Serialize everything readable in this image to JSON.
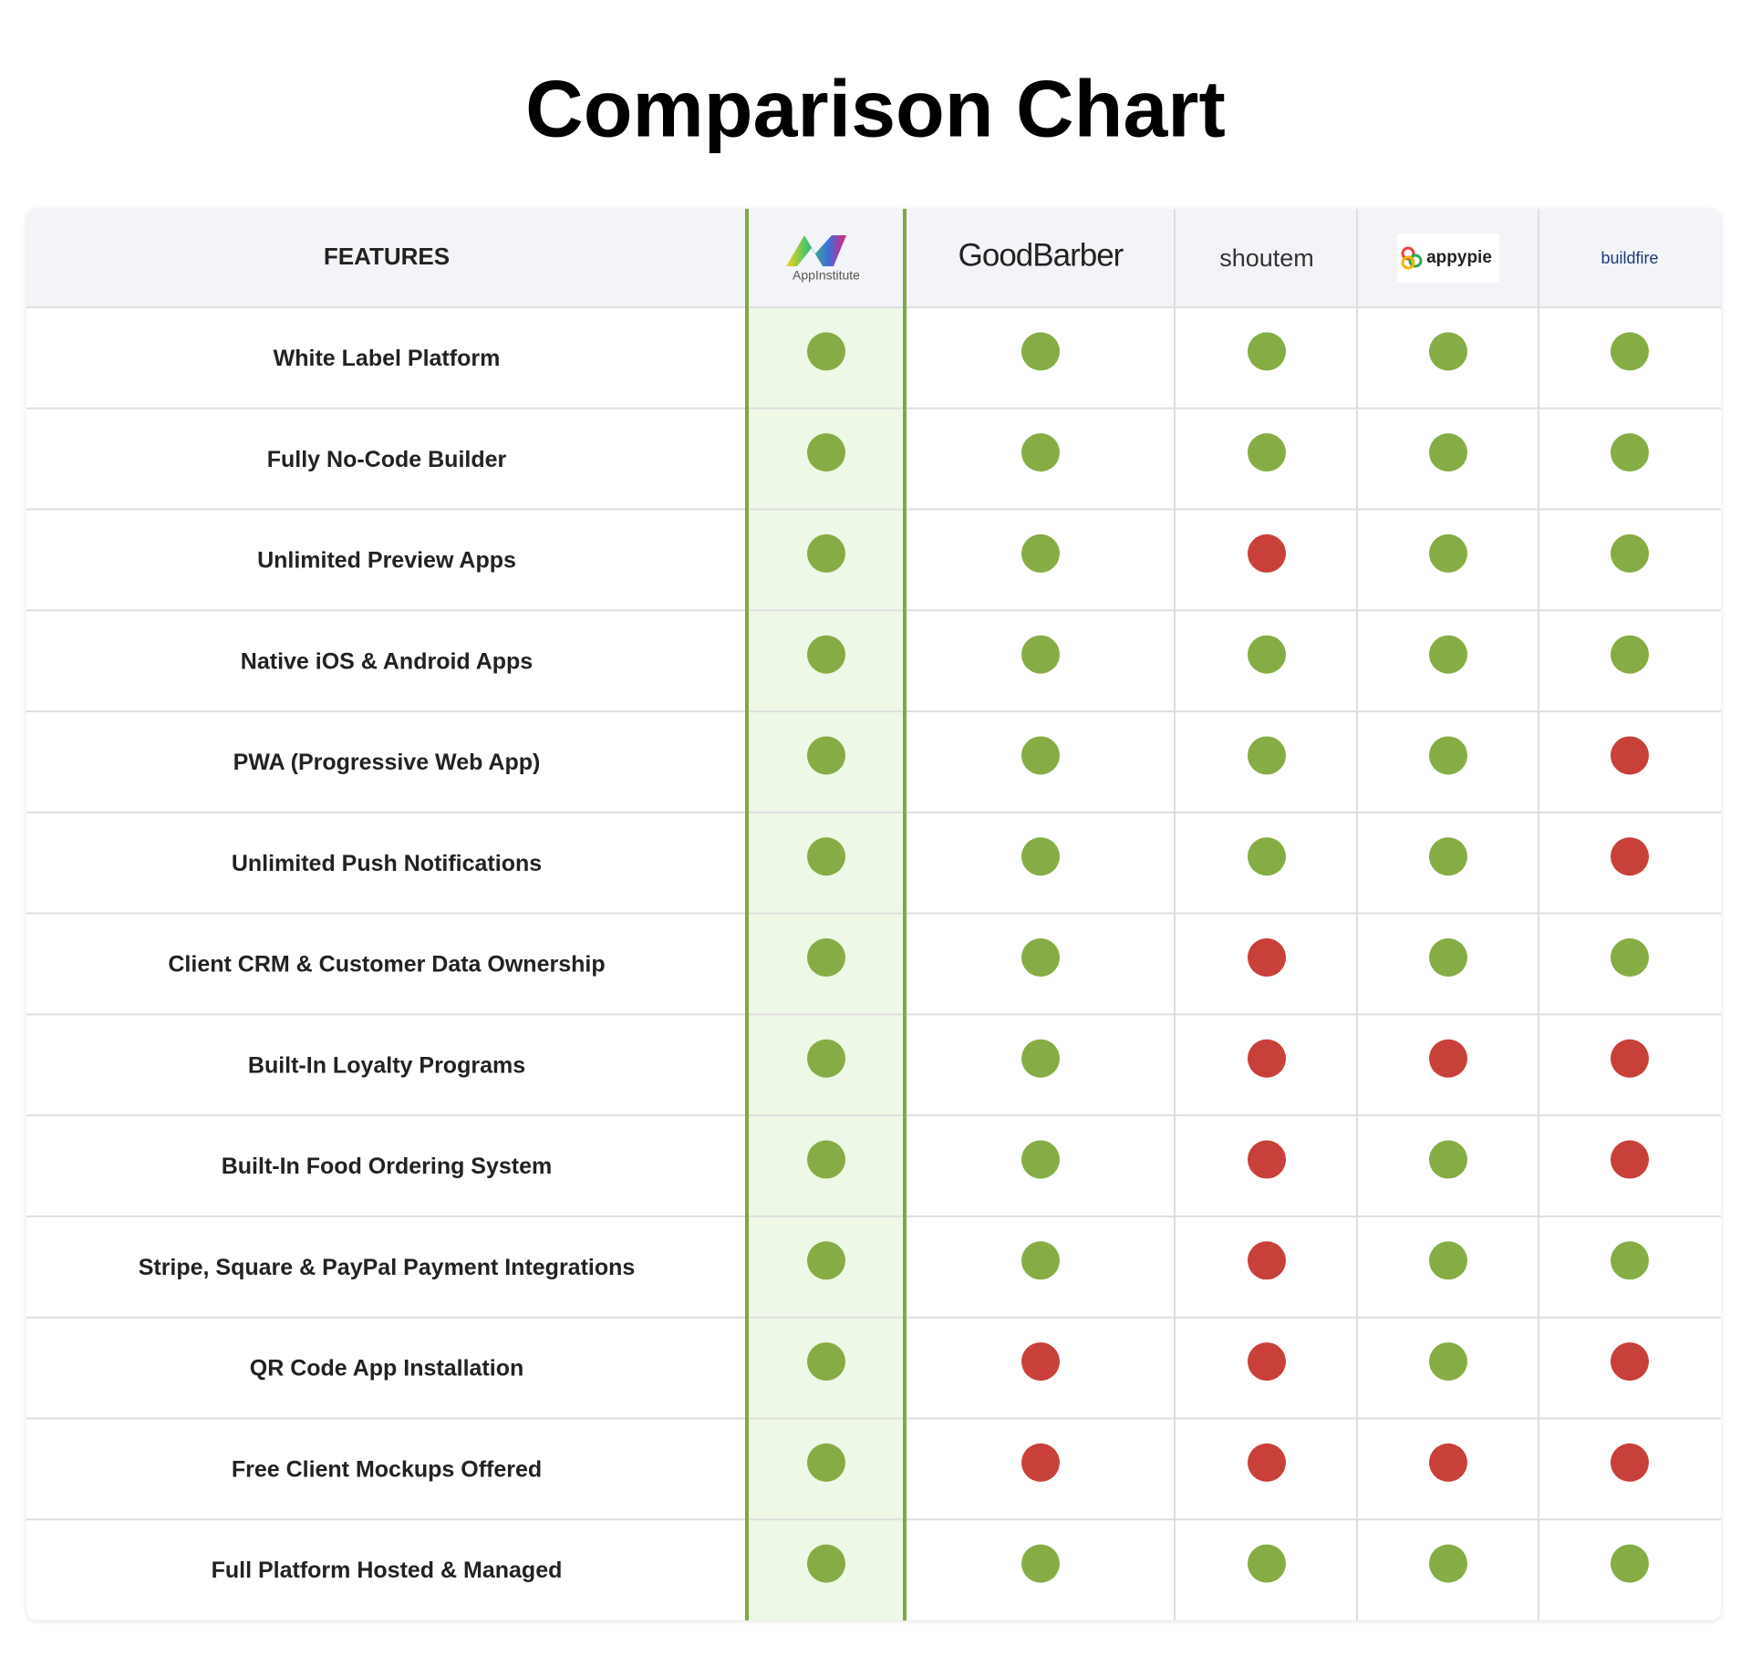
{
  "header": {
    "title": "Comparison Chart"
  },
  "table": {
    "columns": [
      "FEATURES",
      "AppInstitute",
      "GoodBarber",
      "shoutem",
      "appypie",
      "buildfire"
    ],
    "rows": [
      {
        "feature": "White Label Platform",
        "support": [
          true,
          true,
          true,
          true,
          true
        ]
      },
      {
        "feature": "Fully No-Code Builder",
        "support": [
          true,
          true,
          true,
          true,
          true
        ]
      },
      {
        "feature": "Unlimited Preview Apps",
        "support": [
          true,
          true,
          false,
          true,
          true
        ]
      },
      {
        "feature": "Native iOS & Android Apps",
        "support": [
          true,
          true,
          true,
          true,
          true
        ]
      },
      {
        "feature": "PWA (Progressive Web App)",
        "support": [
          true,
          true,
          true,
          true,
          false
        ]
      },
      {
        "feature": "Unlimited Push Notifications",
        "support": [
          true,
          true,
          true,
          true,
          false
        ]
      },
      {
        "feature": "Client CRM & Customer Data Ownership",
        "support": [
          true,
          true,
          false,
          true,
          true
        ]
      },
      {
        "feature": "Built-In Loyalty Programs",
        "support": [
          true,
          true,
          false,
          false,
          false
        ]
      },
      {
        "feature": "Built-In Food Ordering System",
        "support": [
          true,
          true,
          false,
          true,
          false
        ]
      },
      {
        "feature": "Stripe, Square & PayPal Payment Integrations",
        "support": [
          true,
          true,
          false,
          true,
          true
        ]
      },
      {
        "feature": "QR Code App Installation",
        "support": [
          true,
          false,
          false,
          true,
          false
        ]
      },
      {
        "feature": "Free Client Mockups Offered",
        "support": [
          true,
          false,
          false,
          false,
          false
        ]
      },
      {
        "feature": "Full Platform Hosted & Managed",
        "support": [
          true,
          true,
          true,
          true,
          true
        ]
      }
    ]
  }
}
